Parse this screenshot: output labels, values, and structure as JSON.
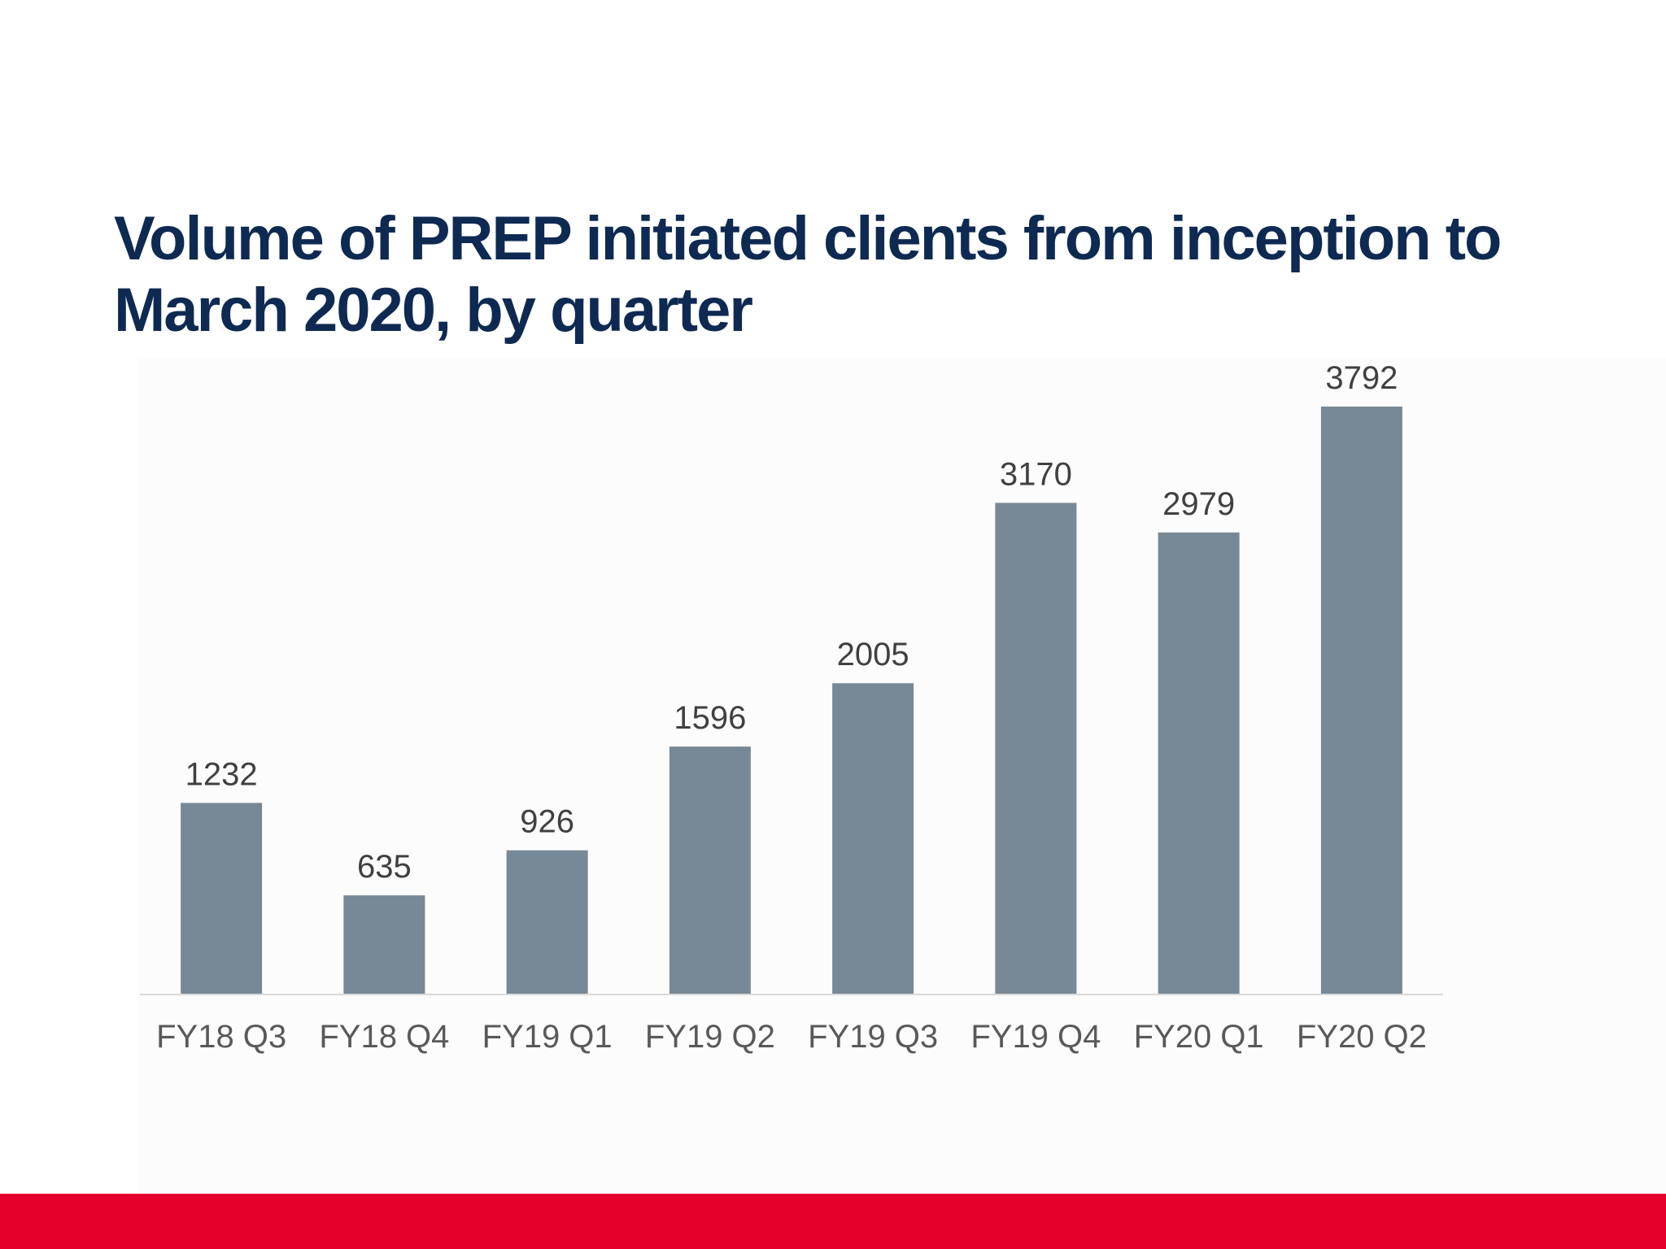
{
  "slide": {
    "title": "Volume of PREP initiated clients from inception to March 2020, by quarter"
  },
  "colors": {
    "title": "#0e2a52",
    "bar": "#778896",
    "footer_band": "#e4002b",
    "axis": "#d9d9d9"
  },
  "chart_data": {
    "type": "bar",
    "title": "Volume of PREP initiated clients from inception to March 2020, by quarter",
    "xlabel": "",
    "ylabel": "",
    "categories": [
      "FY18 Q3",
      "FY18 Q4",
      "FY19 Q1",
      "FY19 Q2",
      "FY19 Q3",
      "FY19 Q4",
      "FY20 Q1",
      "FY20 Q2"
    ],
    "values": [
      1232,
      635,
      926,
      1596,
      2005,
      3170,
      2979,
      3792
    ],
    "ylim": [
      0,
      3792
    ],
    "grid": false,
    "legend": "none",
    "data_labels": true
  }
}
